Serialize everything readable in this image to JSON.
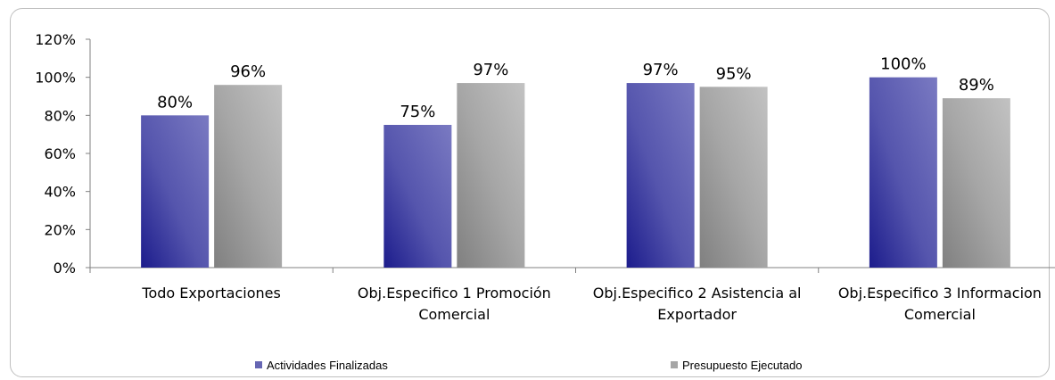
{
  "chart_data": {
    "type": "bar",
    "categories": [
      [
        "Todo Exportaciones"
      ],
      [
        "Obj.Especifico 1 Promoción",
        "Comercial"
      ],
      [
        "Obj.Especifico 2 Asistencia al",
        "Exportador"
      ],
      [
        "Obj.Especifico 3 Informacion",
        "Comercial"
      ]
    ],
    "series": [
      {
        "name": "Actividades Finalizadas",
        "values": [
          80,
          75,
          97,
          100
        ],
        "labels": [
          "80%",
          "75%",
          "97%",
          "100%"
        ],
        "color": "#6666b3"
      },
      {
        "name": "Presupuesto Ejecutado",
        "values": [
          96,
          97,
          95,
          89
        ],
        "labels": [
          "96%",
          "97%",
          "95%",
          "89%"
        ],
        "color": "#a6a6a6"
      }
    ],
    "y_ticks": [
      0,
      20,
      40,
      60,
      80,
      100,
      120
    ],
    "y_tick_labels": [
      "0%",
      "20%",
      "40%",
      "60%",
      "80%",
      "100%",
      "120%"
    ],
    "ylim": [
      0,
      120
    ],
    "grid": false,
    "legend": "bottom"
  }
}
